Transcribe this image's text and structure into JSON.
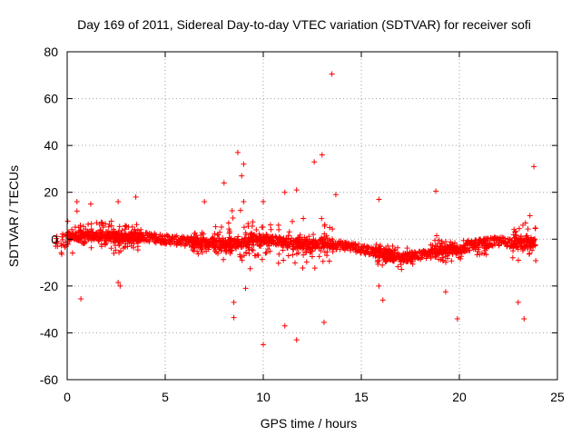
{
  "chart_data": {
    "type": "scatter",
    "title": "Day 169 of 2011, Sidereal Day-to-day VTEC variation (SDTVAR) for receiver sofi",
    "xlabel": "GPS time / hours",
    "ylabel": "SDTVAR / TECUs",
    "xlim": [
      0,
      25
    ],
    "ylim": [
      -60,
      80
    ],
    "x_ticks": [
      0,
      5,
      10,
      15,
      20,
      25
    ],
    "y_ticks": [
      -60,
      -40,
      -20,
      0,
      20,
      40,
      60,
      80
    ],
    "x_tick_labels": [
      "0",
      "5",
      "10",
      "15",
      "20",
      "25"
    ],
    "y_tick_labels": [
      "-60",
      "-40",
      "-20",
      "0",
      "20",
      "40",
      "60",
      "80"
    ],
    "grid": true,
    "marker": "+",
    "color": "#ff0000",
    "series": [
      {
        "name": "SDTVAR",
        "baseline": [
          [
            0.0,
            1.0
          ],
          [
            1.0,
            1.5
          ],
          [
            2.0,
            1.0
          ],
          [
            3.0,
            0.5
          ],
          [
            4.0,
            1.0
          ],
          [
            5.0,
            0.0
          ],
          [
            6.0,
            -1.0
          ],
          [
            7.0,
            -1.5
          ],
          [
            8.0,
            -2.0
          ],
          [
            9.0,
            -1.5
          ],
          [
            10.0,
            0.0
          ],
          [
            11.0,
            -1.0
          ],
          [
            12.0,
            -2.0
          ],
          [
            13.0,
            -2.0
          ],
          [
            14.0,
            -2.5
          ],
          [
            15.0,
            -4.0
          ],
          [
            16.0,
            -6.0
          ],
          [
            17.0,
            -8.0
          ],
          [
            18.0,
            -7.0
          ],
          [
            19.0,
            -5.0
          ],
          [
            20.0,
            -4.0
          ],
          [
            21.0,
            -2.0
          ],
          [
            22.0,
            -1.0
          ],
          [
            23.0,
            -1.5
          ],
          [
            24.0,
            -2.0
          ]
        ],
        "bursts": [
          [
            0.1,
            0.8,
            8
          ],
          [
            1.5,
            0.6,
            7
          ],
          [
            2.5,
            0.5,
            9
          ],
          [
            3.4,
            0.4,
            7
          ],
          [
            6.8,
            0.5,
            6
          ],
          [
            7.9,
            0.5,
            9
          ],
          [
            8.8,
            0.7,
            16
          ],
          [
            9.8,
            0.6,
            10
          ],
          [
            11.5,
            0.8,
            13
          ],
          [
            12.8,
            0.8,
            12
          ],
          [
            16.1,
            0.5,
            6
          ],
          [
            17.0,
            0.8,
            6
          ],
          [
            19.2,
            0.7,
            8
          ],
          [
            20.3,
            1.2,
            6
          ],
          [
            23.3,
            0.6,
            10
          ]
        ],
        "points": [
          [
            0.5,
            12
          ],
          [
            0.5,
            16
          ],
          [
            0.7,
            -25.5
          ],
          [
            1.2,
            15
          ],
          [
            1.5,
            7
          ],
          [
            2.6,
            16
          ],
          [
            2.6,
            -18.5
          ],
          [
            2.7,
            -20
          ],
          [
            3.5,
            18
          ],
          [
            7.0,
            16
          ],
          [
            8.0,
            24
          ],
          [
            8.5,
            -27
          ],
          [
            8.5,
            -33.5
          ],
          [
            8.7,
            37
          ],
          [
            8.9,
            27
          ],
          [
            9.0,
            32
          ],
          [
            9.0,
            16
          ],
          [
            9.1,
            -21
          ],
          [
            10.0,
            16
          ],
          [
            10.0,
            -45
          ],
          [
            11.1,
            20
          ],
          [
            11.1,
            -37
          ],
          [
            11.7,
            21
          ],
          [
            11.7,
            -43
          ],
          [
            12.6,
            33
          ],
          [
            13.0,
            36
          ],
          [
            13.1,
            -35.5
          ],
          [
            13.5,
            70.5
          ],
          [
            13.7,
            19
          ],
          [
            15.9,
            17
          ],
          [
            15.9,
            -20
          ],
          [
            16.1,
            -26
          ],
          [
            18.8,
            20.5
          ],
          [
            19.3,
            -22.5
          ],
          [
            19.9,
            -34
          ],
          [
            23.0,
            -27
          ],
          [
            23.3,
            -34
          ],
          [
            23.8,
            31
          ],
          [
            23.6,
            10
          ]
        ]
      }
    ]
  }
}
